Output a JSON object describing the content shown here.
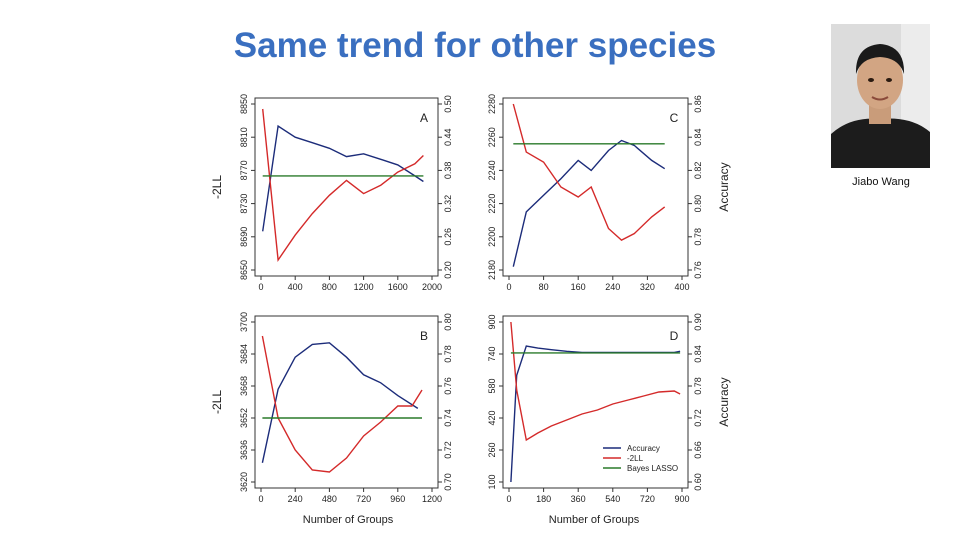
{
  "slide": {
    "title": "Same trend for other species"
  },
  "photo": {
    "caption": "Jiabo Wang",
    "icon": "person-photo"
  },
  "colors": {
    "title": "#3a6fc0",
    "accuracy": "#1c2c7a",
    "neg2ll": "#d42a2a",
    "bayes_lasso": "#2a7a2a"
  },
  "chart_data": [
    {
      "panel": "A",
      "type": "line",
      "xticks": [
        0,
        400,
        800,
        1200,
        1600,
        2000
      ],
      "xlim": [
        0,
        2000
      ],
      "left_axis": {
        "label": "-2LL",
        "ticks": [
          8650,
          8690,
          8730,
          8770,
          8810,
          8850
        ],
        "lim": [
          8650,
          8850
        ]
      },
      "right_axis": {
        "label": "",
        "ticks": [
          0.2,
          0.26,
          0.32,
          0.38,
          0.44,
          0.5
        ],
        "tick_labels": [
          "0.20",
          "0.26",
          "0.32",
          "0.38",
          "0.44",
          "0.50"
        ],
        "lim": [
          0.2,
          0.5
        ]
      },
      "series": [
        {
          "name": "Accuracy",
          "color": "#1c2c7a",
          "axis": "right",
          "x": [
            20,
            200,
            400,
            600,
            800,
            1000,
            1200,
            1400,
            1600,
            1800,
            1900
          ],
          "y": [
            0.27,
            0.46,
            0.44,
            0.43,
            0.42,
            0.405,
            0.41,
            0.4,
            0.39,
            0.37,
            0.36
          ]
        },
        {
          "name": "-2LL",
          "color": "#d42a2a",
          "axis": "left",
          "x": [
            20,
            200,
            400,
            600,
            800,
            1000,
            1200,
            1400,
            1600,
            1800,
            1900
          ],
          "y": [
            8844,
            8662,
            8692,
            8718,
            8740,
            8758,
            8742,
            8752,
            8768,
            8778,
            8788
          ]
        },
        {
          "name": "Bayes LASSO",
          "color": "#2a7a2a",
          "axis": "right",
          "x": [
            20,
            1900
          ],
          "y": [
            0.37,
            0.37
          ]
        }
      ]
    },
    {
      "panel": "C",
      "type": "line",
      "xticks": [
        0,
        80,
        160,
        240,
        320,
        400
      ],
      "xlim": [
        0,
        400
      ],
      "left_axis": {
        "label": "",
        "ticks": [
          2180,
          2200,
          2220,
          2240,
          2260,
          2280
        ],
        "lim": [
          2180,
          2280
        ]
      },
      "right_axis": {
        "label": "Accuracy",
        "ticks": [
          0.76,
          0.78,
          0.8,
          0.82,
          0.84,
          0.86
        ],
        "tick_labels": [
          "0.76",
          "0.78",
          "0.80",
          "0.82",
          "0.84",
          "0.86"
        ],
        "lim": [
          0.76,
          0.86
        ]
      },
      "series": [
        {
          "name": "Accuracy",
          "color": "#1c2c7a",
          "axis": "right",
          "x": [
            10,
            40,
            80,
            120,
            160,
            190,
            230,
            260,
            290,
            330,
            360
          ],
          "y": [
            0.762,
            0.795,
            0.805,
            0.815,
            0.826,
            0.82,
            0.832,
            0.838,
            0.835,
            0.826,
            0.821
          ]
        },
        {
          "name": "-2LL",
          "color": "#d42a2a",
          "axis": "left",
          "x": [
            10,
            40,
            80,
            120,
            160,
            190,
            230,
            260,
            290,
            330,
            360
          ],
          "y": [
            2280,
            2251,
            2245,
            2230,
            2224,
            2230,
            2205,
            2198,
            2202,
            2212,
            2218
          ]
        },
        {
          "name": "Bayes LASSO",
          "color": "#2a7a2a",
          "axis": "right",
          "x": [
            10,
            360
          ],
          "y": [
            0.836,
            0.836
          ]
        }
      ]
    },
    {
      "panel": "B",
      "type": "line",
      "xticks": [
        0,
        240,
        480,
        720,
        960,
        1200
      ],
      "xlim": [
        0,
        1200
      ],
      "left_axis": {
        "label": "-2LL",
        "ticks": [
          3620,
          3636,
          3652,
          3668,
          3684,
          3700
        ],
        "lim": [
          3620,
          3700
        ]
      },
      "right_axis": {
        "label": "",
        "ticks": [
          0.7,
          0.72,
          0.74,
          0.76,
          0.78,
          0.8
        ],
        "tick_labels": [
          "0.70",
          "0.72",
          "0.74",
          "0.76",
          "0.78",
          "0.80"
        ],
        "lim": [
          0.7,
          0.8
        ]
      },
      "series": [
        {
          "name": "Accuracy",
          "color": "#1c2c7a",
          "axis": "right",
          "x": [
            10,
            120,
            240,
            360,
            480,
            600,
            720,
            840,
            960,
            1100
          ],
          "y": [
            0.712,
            0.758,
            0.778,
            0.786,
            0.787,
            0.778,
            0.767,
            0.762,
            0.754,
            0.746
          ]
        },
        {
          "name": "-2LL",
          "color": "#d42a2a",
          "axis": "left",
          "x": [
            10,
            120,
            240,
            360,
            480,
            600,
            720,
            840,
            960,
            1060,
            1130
          ],
          "y": [
            3693,
            3652,
            3636,
            3626,
            3625,
            3632,
            3643,
            3650,
            3658,
            3658,
            3666
          ]
        },
        {
          "name": "Bayes LASSO",
          "color": "#2a7a2a",
          "axis": "right",
          "x": [
            10,
            1130
          ],
          "y": [
            0.74,
            0.74
          ]
        }
      ]
    },
    {
      "panel": "D",
      "type": "line",
      "xticks": [
        0,
        180,
        360,
        540,
        720,
        900
      ],
      "xlim": [
        0,
        900
      ],
      "left_axis": {
        "label": "",
        "ticks": [
          100,
          260,
          420,
          580,
          740,
          900
        ],
        "lim": [
          100,
          900
        ]
      },
      "right_axis": {
        "label": "Accuracy",
        "ticks": [
          0.6,
          0.66,
          0.72,
          0.78,
          0.84,
          0.9
        ],
        "tick_labels": [
          "0.60",
          "0.66",
          "0.72",
          "0.78",
          "0.84",
          "0.90"
        ],
        "lim": [
          0.6,
          0.9
        ]
      },
      "series": [
        {
          "name": "Accuracy",
          "color": "#1c2c7a",
          "axis": "right",
          "x": [
            10,
            40,
            90,
            150,
            220,
            300,
            380,
            460,
            540,
            620,
            700,
            780,
            860,
            890
          ],
          "y": [
            0.6,
            0.8,
            0.855,
            0.851,
            0.848,
            0.845,
            0.843,
            0.843,
            0.843,
            0.843,
            0.843,
            0.843,
            0.843,
            0.845
          ]
        },
        {
          "name": "-2LL",
          "color": "#d42a2a",
          "axis": "left",
          "x": [
            10,
            40,
            90,
            150,
            220,
            300,
            380,
            460,
            540,
            620,
            700,
            780,
            860,
            890
          ],
          "y": [
            900,
            560,
            310,
            345,
            380,
            410,
            440,
            460,
            490,
            510,
            530,
            550,
            555,
            540
          ]
        },
        {
          "name": "Bayes LASSO",
          "color": "#2a7a2a",
          "axis": "right",
          "x": [
            10,
            890
          ],
          "y": [
            0.842,
            0.842
          ]
        }
      ]
    }
  ],
  "legend": {
    "panel": "D",
    "position": "bottom-right",
    "entries": [
      {
        "label": "Accuracy",
        "color": "#1c2c7a"
      },
      {
        "label": "-2LL",
        "color": "#d42a2a"
      },
      {
        "label": "Bayes LASSO",
        "color": "#2a7a2a"
      }
    ]
  },
  "xlabels": [
    "Number of Groups",
    "Number of Groups"
  ]
}
